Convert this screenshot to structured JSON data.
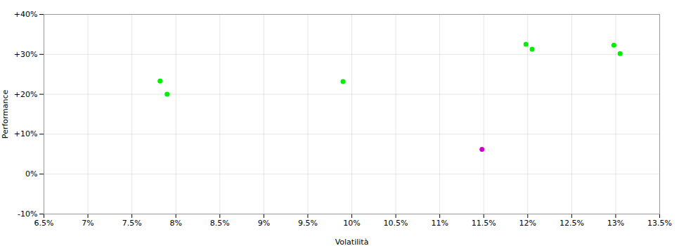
{
  "chart_data": {
    "type": "scatter",
    "xlabel": "Volatilità",
    "ylabel": "Performance",
    "series": [
      {
        "color": "#00ee00",
        "marker": "circle",
        "x": [
          0.0782,
          0.079,
          0.099,
          0.1198,
          0.1205,
          0.1298,
          0.1305
        ],
        "values": [
          0.233,
          0.2,
          0.232,
          0.325,
          0.313,
          0.323,
          0.302
        ]
      },
      {
        "color": "#cc00cc",
        "marker": "circle",
        "x": [
          0.1148
        ],
        "values": [
          0.062
        ]
      }
    ],
    "xlim": [
      0.065,
      0.135
    ],
    "ylim": [
      -0.1,
      0.4
    ],
    "xticks": [
      {
        "value": 0.065,
        "label": "6.5%"
      },
      {
        "value": 0.07,
        "label": "7%"
      },
      {
        "value": 0.075,
        "label": "7.5%"
      },
      {
        "value": 0.08,
        "label": "8%"
      },
      {
        "value": 0.085,
        "label": "8.5%"
      },
      {
        "value": 0.09,
        "label": "9%"
      },
      {
        "value": 0.095,
        "label": "9.5%"
      },
      {
        "value": 0.1,
        "label": "10%"
      },
      {
        "value": 0.105,
        "label": "10.5%"
      },
      {
        "value": 0.11,
        "label": "11%"
      },
      {
        "value": 0.115,
        "label": "11.5%"
      },
      {
        "value": 0.12,
        "label": "12%"
      },
      {
        "value": 0.125,
        "label": "12.5%"
      },
      {
        "value": 0.13,
        "label": "13%"
      },
      {
        "value": 0.135,
        "label": "13.5%"
      }
    ],
    "yticks": [
      {
        "value": -0.1,
        "label": "-10%"
      },
      {
        "value": 0.0,
        "label": "0%"
      },
      {
        "value": 0.1,
        "label": "+10%"
      },
      {
        "value": 0.2,
        "label": "+20%"
      },
      {
        "value": 0.3,
        "label": "+30%"
      },
      {
        "value": 0.4,
        "label": "+40%"
      }
    ],
    "grid": true
  }
}
